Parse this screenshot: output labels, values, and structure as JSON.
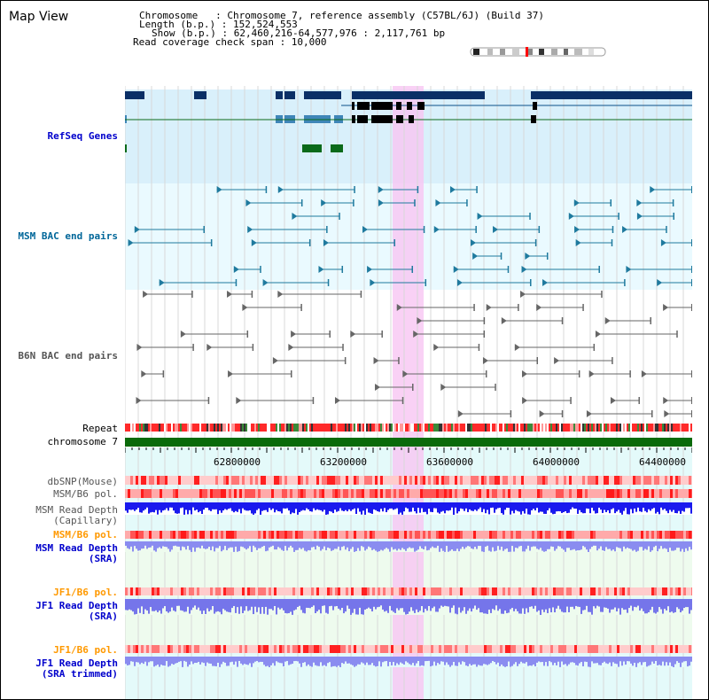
{
  "page_title": "Map View",
  "info": {
    "chromosome_label": "Chromosome   : Chromosome 7, reference assembly (C57BL/6J) (Build 37)",
    "length_label": "Length (b.p.) : 152,524,553",
    "show_label": "Show (b.p.) : 62,460,216-64,577,976 : 2,117,761 bp",
    "coverage_label": "Read coverage check span : 10,000"
  },
  "track_labels": {
    "refseq": "RefSeq Genes",
    "msm_bac": "MSM BAC end pairs",
    "b6n_bac": "B6N BAC end pairs",
    "repeat": "Repeat",
    "chromosome": "chromosome 7",
    "dbsnp": "dbSNP(Mouse)",
    "msm_b6_pol": "MSM/B6 pol.",
    "msm_read_depth_cap_1": "MSM Read Depth",
    "msm_read_depth_cap_2": "(Capillary)",
    "msm_b6_pol_2": "MSM/B6 pol.",
    "msm_read_depth_sra_1": "MSM Read Depth",
    "msm_read_depth_sra_2": "(SRA)",
    "jf1_b6_pol": "JF1/B6 pol.",
    "jf1_read_depth_sra_1": "JF1 Read Depth",
    "jf1_read_depth_sra_2": "(SRA)",
    "jf1_b6_pol_2": "JF1/B6 pol.",
    "jf1_read_depth_trim_1": "JF1 Read Depth",
    "jf1_read_depth_trim_2": "(SRA trimmed)"
  },
  "axis": {
    "ticks": [
      "62800000",
      "63200000",
      "63600000",
      "64000000",
      "64400000"
    ]
  },
  "colors": {
    "refseq_label": "#0000cc",
    "bac_label": "#006699",
    "b6n_label": "#555555",
    "pol_orange": "#ff9900",
    "depth_blue": "#0000cc",
    "highlight": "#f7c6f2"
  }
}
